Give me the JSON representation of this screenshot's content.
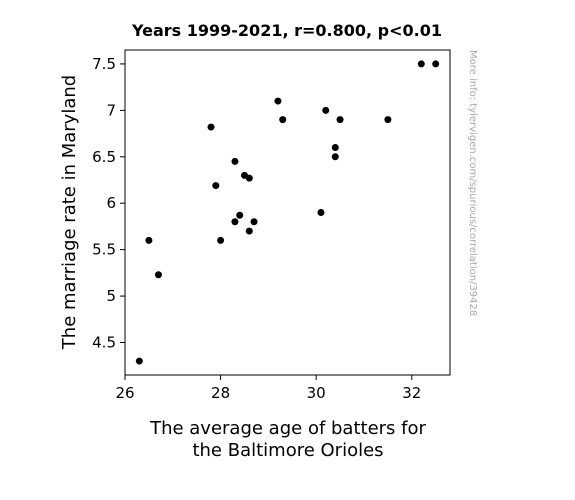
{
  "chart_data": {
    "type": "scatter",
    "title": "Years 1999-2021, r=0.800, p<0.01",
    "xlabel": [
      "The average age of batters for",
      "the Baltimore Orioles"
    ],
    "ylabel": "The marriage rate in Maryland",
    "xlim": [
      26,
      32.8
    ],
    "ylim": [
      4.15,
      7.65
    ],
    "xticks": [
      "26",
      "28",
      "30",
      "32"
    ],
    "yticks": [
      "4.5",
      "5",
      "5.5",
      "6",
      "6.5",
      "7",
      "7.5"
    ],
    "grid": false,
    "marker_color": "#000000",
    "points": [
      {
        "x": 26.3,
        "y": 4.3
      },
      {
        "x": 26.5,
        "y": 5.6
      },
      {
        "x": 26.7,
        "y": 5.23
      },
      {
        "x": 27.8,
        "y": 6.82
      },
      {
        "x": 27.9,
        "y": 6.19
      },
      {
        "x": 28.0,
        "y": 5.6
      },
      {
        "x": 28.3,
        "y": 6.45
      },
      {
        "x": 28.3,
        "y": 5.8
      },
      {
        "x": 28.4,
        "y": 5.87
      },
      {
        "x": 28.5,
        "y": 6.3
      },
      {
        "x": 28.6,
        "y": 6.27
      },
      {
        "x": 28.6,
        "y": 5.7
      },
      {
        "x": 28.7,
        "y": 5.8
      },
      {
        "x": 29.2,
        "y": 7.1
      },
      {
        "x": 29.3,
        "y": 6.9
      },
      {
        "x": 30.1,
        "y": 5.9
      },
      {
        "x": 30.2,
        "y": 7.0
      },
      {
        "x": 30.4,
        "y": 6.6
      },
      {
        "x": 30.4,
        "y": 6.5
      },
      {
        "x": 30.5,
        "y": 6.9
      },
      {
        "x": 31.5,
        "y": 6.9
      },
      {
        "x": 32.2,
        "y": 7.5
      },
      {
        "x": 32.5,
        "y": 7.5
      }
    ]
  },
  "side_note": "More info: tylervigen.com/spurious/correlation/39428"
}
